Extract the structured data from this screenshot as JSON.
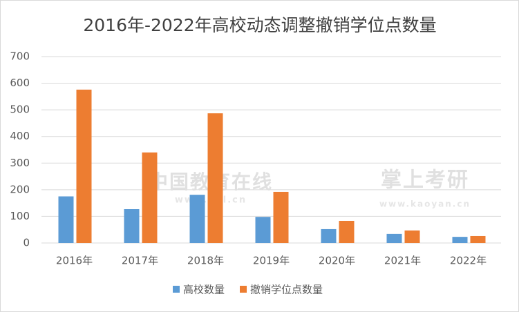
{
  "chart_data": {
    "type": "bar",
    "title": "2016年-2022年高校动态调整撤销学位点数量",
    "categories": [
      "2016年",
      "2017年",
      "2018年",
      "2019年",
      "2020年",
      "2021年",
      "2022年"
    ],
    "series": [
      {
        "name": "高校数量",
        "color": "#5b9bd5",
        "values": [
          175,
          127,
          181,
          98,
          52,
          34,
          23
        ]
      },
      {
        "name": "撤销学位点数量",
        "color": "#ed7d31",
        "values": [
          576,
          340,
          487,
          192,
          83,
          47,
          26
        ]
      }
    ],
    "ylim": [
      0,
      700
    ],
    "yticks": [
      0,
      100,
      200,
      300,
      400,
      500,
      600,
      700
    ],
    "grid": true,
    "legend": "bottom",
    "watermarks": [
      "中国教育在线",
      "www.eol.cn",
      "掌上考研",
      "www.kaoyan.cn"
    ]
  }
}
